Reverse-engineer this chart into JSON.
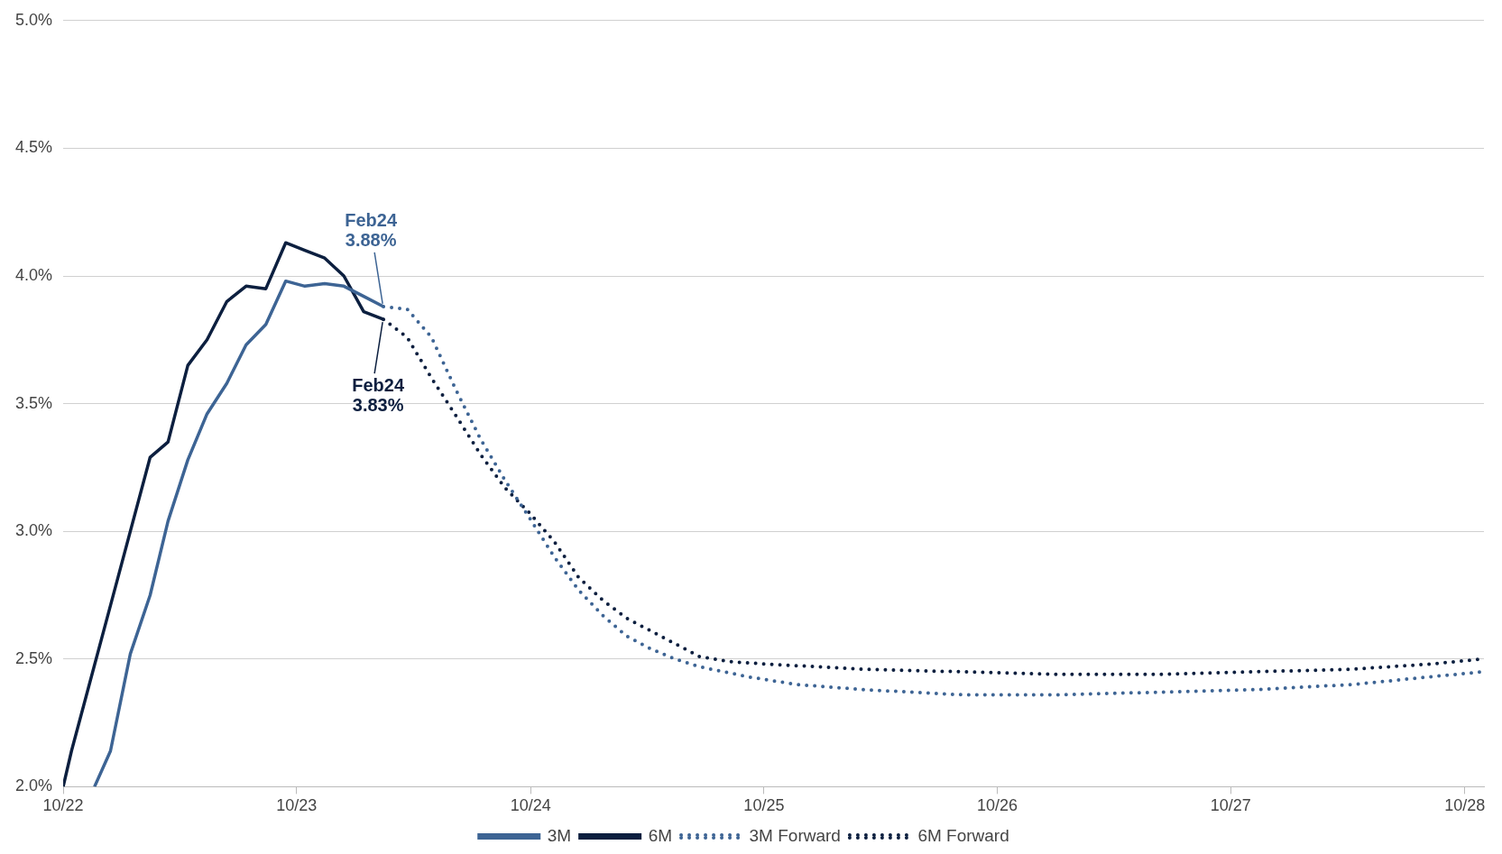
{
  "chart_data": {
    "type": "line",
    "xlim": [
      "2022-10-01",
      "2028-10-31"
    ],
    "ylim": [
      2,
      5
    ],
    "xticks": [
      {
        "value": "2022-10-01",
        "label": "10/22"
      },
      {
        "value": "2023-10-01",
        "label": "10/23"
      },
      {
        "value": "2024-10-01",
        "label": "10/24"
      },
      {
        "value": "2025-10-01",
        "label": "10/25"
      },
      {
        "value": "2026-10-01",
        "label": "10/26"
      },
      {
        "value": "2027-10-01",
        "label": "10/27"
      },
      {
        "value": "2028-10-01",
        "label": "10/28"
      }
    ],
    "yticks": [
      {
        "value": 2,
        "label": "2.0%"
      },
      {
        "value": 2.5,
        "label": "2.5%"
      },
      {
        "value": 3,
        "label": "3.0%"
      },
      {
        "value": 3.5,
        "label": "3.5%"
      },
      {
        "value": 4,
        "label": "4.0%"
      },
      {
        "value": 4.5,
        "label": "4.5%"
      },
      {
        "value": 5,
        "label": "5.0%"
      }
    ],
    "grid": "y",
    "legend": "bottom",
    "marker": "none",
    "series": [
      {
        "name": "3M",
        "color": "#3d6494",
        "line_style": "solid",
        "x": [
          "2022-11-19",
          "2022-12-14",
          "2023-01-14",
          "2023-02-14",
          "2023-03-14",
          "2023-04-14",
          "2023-05-14",
          "2023-06-14",
          "2023-07-14",
          "2023-08-14",
          "2023-09-14",
          "2023-10-14",
          "2023-11-14",
          "2023-12-14",
          "2024-01-14",
          "2024-02-14"
        ],
        "values": [
          2.0,
          2.14,
          2.52,
          2.75,
          3.04,
          3.28,
          3.46,
          3.58,
          3.73,
          3.81,
          3.98,
          3.96,
          3.97,
          3.96,
          3.92,
          3.88
        ]
      },
      {
        "name": "6M",
        "color": "#0c1f3f",
        "line_style": "solid",
        "x": [
          "2022-10-01",
          "2022-10-14",
          "2022-12-14",
          "2023-02-14",
          "2023-03-14",
          "2023-04-14",
          "2023-05-14",
          "2023-06-14",
          "2023-07-14",
          "2023-08-14",
          "2023-09-14",
          "2023-10-14",
          "2023-11-14",
          "2023-12-14",
          "2024-01-14",
          "2024-02-14"
        ],
        "values": [
          2.0,
          2.14,
          2.71,
          3.29,
          3.35,
          3.65,
          3.75,
          3.9,
          3.96,
          3.95,
          4.13,
          4.1,
          4.07,
          4.0,
          3.86,
          3.83
        ]
      },
      {
        "name": "3M Forward",
        "color": "#3d6494",
        "line_style": "dotted",
        "x": [
          "2024-02-14",
          "2024-03-22",
          "2024-04-29",
          "2024-06-07",
          "2024-07-15",
          "2024-08-22",
          "2024-09-30",
          "2024-11-07",
          "2024-12-15",
          "2025-01-22",
          "2025-02-28",
          "2025-04-07",
          "2025-05-15",
          "2025-06-22",
          "2025-09-07",
          "2025-11-22",
          "2026-03-07",
          "2026-08-07",
          "2027-01-07",
          "2027-06-07",
          "2027-11-07",
          "2028-04-07",
          "2028-08-07",
          "2028-10-29"
        ],
        "values": [
          3.88,
          3.87,
          3.76,
          3.55,
          3.36,
          3.2,
          3.05,
          2.9,
          2.77,
          2.67,
          2.59,
          2.54,
          2.5,
          2.47,
          2.43,
          2.4,
          2.38,
          2.36,
          2.36,
          2.37,
          2.38,
          2.4,
          2.43,
          2.45
        ]
      },
      {
        "name": "6M Forward",
        "color": "#0c1f3f",
        "line_style": "dotted",
        "x": [
          "2024-02-14",
          "2024-03-22",
          "2024-04-29",
          "2024-06-07",
          "2024-07-15",
          "2024-08-22",
          "2024-09-30",
          "2024-11-07",
          "2024-12-15",
          "2025-01-22",
          "2025-02-28",
          "2025-04-07",
          "2025-05-15",
          "2025-06-22",
          "2025-08-07",
          "2025-10-07",
          "2026-03-07",
          "2026-08-07",
          "2027-01-07",
          "2027-06-07",
          "2027-11-07",
          "2028-04-07",
          "2028-08-07",
          "2028-10-29"
        ],
        "values": [
          3.83,
          3.76,
          3.6,
          3.45,
          3.3,
          3.17,
          3.07,
          2.96,
          2.82,
          2.73,
          2.66,
          2.61,
          2.56,
          2.51,
          2.49,
          2.48,
          2.46,
          2.45,
          2.44,
          2.44,
          2.45,
          2.46,
          2.48,
          2.5
        ]
      }
    ],
    "annotations": [
      {
        "text": "Feb24\n3.88%",
        "x": "2024-02-14",
        "y": 3.88
      },
      {
        "text": "Feb24\n3.83%",
        "x": "2024-02-14",
        "y": 3.83
      }
    ]
  }
}
